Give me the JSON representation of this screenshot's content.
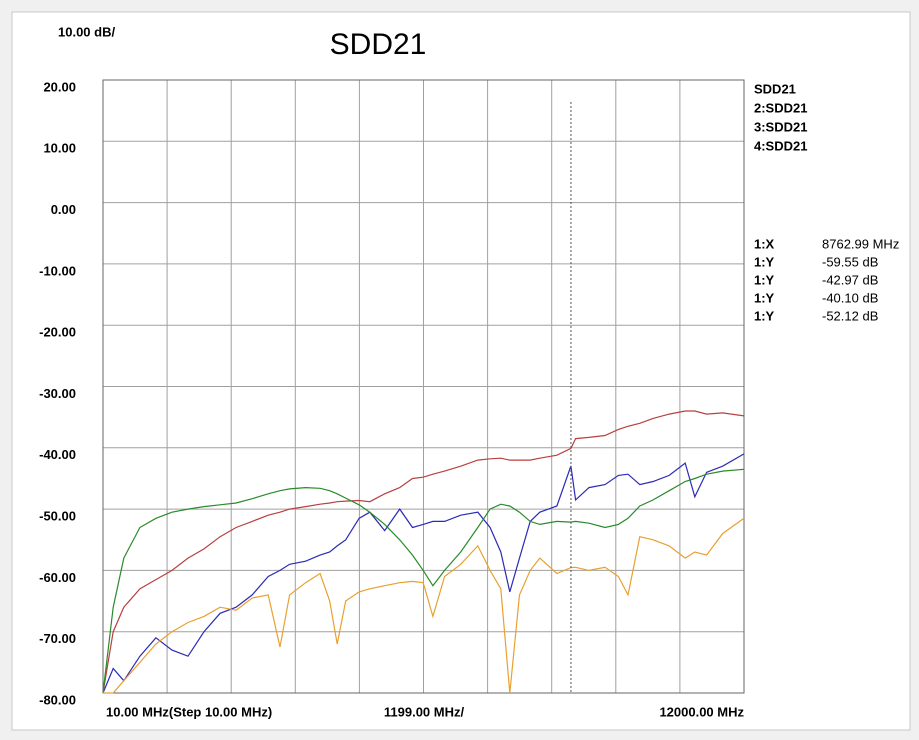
{
  "chart_data": {
    "type": "line",
    "title": "SDD21",
    "scale_label": "10.00 dB/",
    "x_start_label": "10.00 MHz(Step 10.00 MHz)",
    "x_scale_label": "1199.00 MHz/",
    "x_stop_label": "12000.00 MHz",
    "xlim": [
      10,
      12000
    ],
    "ylim": [
      -80,
      20
    ],
    "xticks": [
      10,
      1209,
      2408,
      3607,
      4806,
      6005,
      7204,
      8403,
      9602,
      10801,
      12000
    ],
    "yticks": [
      {
        "value": 20,
        "label": "20.00"
      },
      {
        "value": 10,
        "label": "10.00"
      },
      {
        "value": 0,
        "label": "0.00"
      },
      {
        "value": -10,
        "label": "-10.00"
      },
      {
        "value": -20,
        "label": "-20.00"
      },
      {
        "value": -30,
        "label": "-30.00"
      },
      {
        "value": -40,
        "label": "-40.00"
      },
      {
        "value": -50,
        "label": "-50.00"
      },
      {
        "value": -60,
        "label": "-60.00"
      },
      {
        "value": -70,
        "label": "-70.00"
      },
      {
        "value": -80,
        "label": "-80.00"
      }
    ],
    "grid": true,
    "x": [
      10,
      200,
      400,
      700,
      1000,
      1300,
      1600,
      1900,
      2200,
      2500,
      2800,
      3100,
      3320,
      3500,
      3800,
      4070,
      4250,
      4390,
      4550,
      4800,
      5000,
      5280,
      5560,
      5800,
      6000,
      6180,
      6400,
      6700,
      7020,
      7250,
      7450,
      7620,
      7800,
      8000,
      8180,
      8500,
      8763,
      8850,
      9100,
      9400,
      9650,
      9830,
      10050,
      10300,
      10600,
      10900,
      11080,
      11300,
      11600,
      12000
    ],
    "series": [
      {
        "name": "SDD21",
        "legend_color": "#5a2fc8",
        "color": "#2a2ab8",
        "values": [
          -80,
          -76,
          -78,
          -74,
          -71,
          -73,
          -74,
          -70,
          -67,
          -66,
          -64,
          -61,
          -60,
          -59,
          -58.5,
          -57.5,
          -57,
          -56,
          -55,
          -51.5,
          -50.5,
          -53.5,
          -50,
          -53,
          -52.5,
          -52,
          -52,
          -51,
          -50.5,
          -53,
          -57,
          -63.5,
          -58,
          -52,
          -50.5,
          -49.5,
          -42.97,
          -48.5,
          -46.5,
          -46,
          -44.5,
          -44.3,
          -46,
          -45.5,
          -44.5,
          -42.5,
          -48,
          -44,
          -43,
          -41
        ]
      },
      {
        "name": "2:SDD21",
        "legend_color": "#b83030",
        "color": "#b84040",
        "values": [
          -80,
          -70,
          -66,
          -63,
          -61.5,
          -60,
          -58,
          -56.5,
          -54.5,
          -53,
          -52,
          -51,
          -50.5,
          -50,
          -49.6,
          -49.2,
          -49,
          -48.8,
          -48.7,
          -48.6,
          -48.8,
          -47.5,
          -46.5,
          -45,
          -44.8,
          -44.3,
          -43.8,
          -43,
          -42,
          -41.8,
          -41.7,
          -42,
          -42,
          -42,
          -41.7,
          -41.2,
          -40.1,
          -38.5,
          -38.3,
          -38,
          -37,
          -36.5,
          -36,
          -35.2,
          -34.5,
          -34,
          -34,
          -34.5,
          -34.3,
          -34.8
        ]
      },
      {
        "name": "3:SDD21",
        "legend_color": "#3a7a2a",
        "color": "#2a8a2a",
        "values": [
          -80,
          -66,
          -58,
          -53,
          -51.5,
          -50.5,
          -50,
          -49.6,
          -49.3,
          -49,
          -48.3,
          -47.5,
          -47,
          -46.7,
          -46.5,
          -46.6,
          -47,
          -47.5,
          -48.2,
          -49.3,
          -50.5,
          -52.5,
          -55,
          -57.5,
          -60,
          -62.5,
          -60,
          -57,
          -53,
          -50,
          -49.2,
          -49.5,
          -50.5,
          -52,
          -52.5,
          -52,
          -52.12,
          -52,
          -52.3,
          -53,
          -52.5,
          -51.5,
          -49.5,
          -48.5,
          -47,
          -45.5,
          -45,
          -44.3,
          -43.8,
          -43.5
        ]
      },
      {
        "name": "4:SDD21",
        "legend_color": "#e8952a",
        "color": "#e8a030",
        "values": [
          -80,
          -80,
          -78,
          -75,
          -72,
          -70,
          -68.5,
          -67.5,
          -66,
          -66.5,
          -64.5,
          -64,
          -72.5,
          -64,
          -62,
          -60.5,
          -65,
          -72,
          -65,
          -63.5,
          -63,
          -62.5,
          -62,
          -61.8,
          -62,
          -67.5,
          -61,
          -59,
          -56,
          -60,
          -63,
          -80,
          -64,
          -60,
          -58,
          -60.5,
          -59.55,
          -59.5,
          -60,
          -59.5,
          -61,
          -64,
          -54.5,
          -55,
          -56,
          -58,
          -57,
          -57.5,
          -54,
          -51.5
        ]
      }
    ],
    "marker": {
      "x": 8762.99,
      "x_name": "1:X",
      "x_label": "8762.99 MHz",
      "x_color": "#a05a5a",
      "readouts": [
        {
          "name": "1:Y",
          "color": "#e8952a",
          "value": -59.55,
          "value_label": "-59.55 dB"
        },
        {
          "name": "1:Y",
          "color": "#4a2ab8",
          "value": -42.97,
          "value_label": "-42.97 dB"
        },
        {
          "name": "1:Y",
          "color": "#c03030",
          "value": -40.1,
          "value_label": "-40.10 dB"
        },
        {
          "name": "1:Y",
          "color": "#6a7a20",
          "value": -52.12,
          "value_label": "-52.12 dB"
        }
      ]
    }
  }
}
